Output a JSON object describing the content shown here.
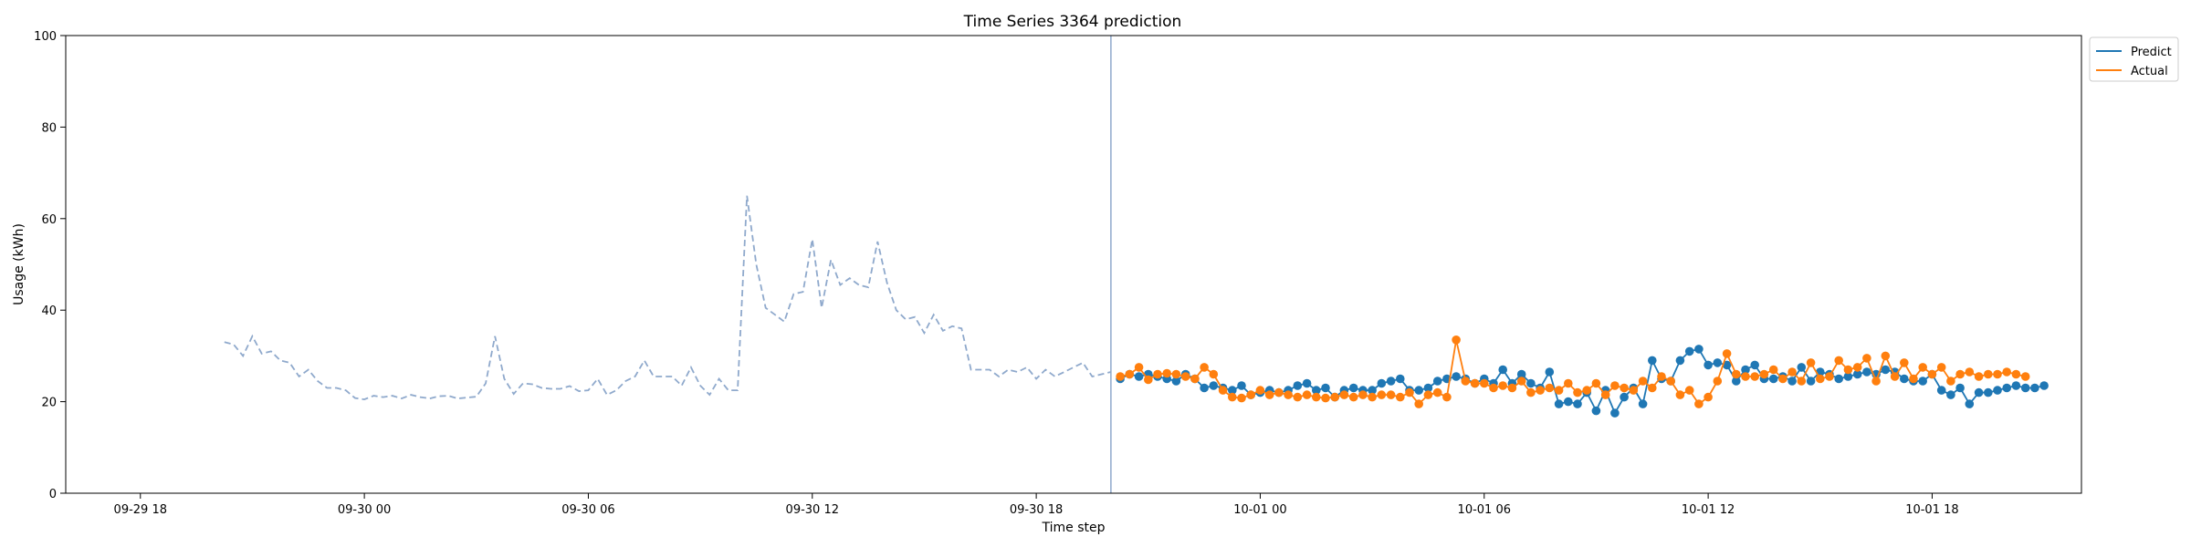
{
  "chart_data": {
    "type": "line",
    "title": "Time Series 3364 prediction",
    "xlabel": "Time step",
    "ylabel": "Usage (kWh)",
    "ylim": [
      0,
      100
    ],
    "yticks": [
      "0",
      "20",
      "40",
      "60",
      "80",
      "100"
    ],
    "xlim": [
      "2024-09-29T16:00",
      "2024-10-01T22:00"
    ],
    "xticks": [
      {
        "label": "09-29 18",
        "t": "2024-09-29T18:00"
      },
      {
        "label": "09-30 00",
        "t": "2024-09-30T00:00"
      },
      {
        "label": "09-30 06",
        "t": "2024-09-30T06:00"
      },
      {
        "label": "09-30 12",
        "t": "2024-09-30T12:00"
      },
      {
        "label": "09-30 18",
        "t": "2024-09-30T18:00"
      },
      {
        "label": "10-01 00",
        "t": "2024-10-01T00:00"
      },
      {
        "label": "10-01 06",
        "t": "2024-10-01T06:00"
      },
      {
        "label": "10-01 12",
        "t": "2024-10-01T12:00"
      },
      {
        "label": "10-01 18",
        "t": "2024-10-01T18:00"
      }
    ],
    "grid": false,
    "legend_position": "outside-top-right",
    "forecast_start": "2024-09-30T20:00",
    "sampling": "15 min",
    "history": {
      "start": "2024-09-29T20:15",
      "color": "#8fa9cc",
      "values": [
        33.0,
        32.5,
        30.0,
        34.3,
        30.5,
        31.0,
        29.0,
        28.5,
        25.5,
        27.0,
        24.5,
        23.0,
        23.0,
        22.5,
        20.8,
        20.5,
        21.3,
        21.0,
        21.3,
        20.7,
        21.5,
        21.0,
        20.7,
        21.2,
        21.3,
        20.7,
        20.9,
        21.1,
        24.0,
        34.3,
        25.0,
        21.7,
        24.0,
        23.8,
        23.0,
        22.8,
        22.8,
        23.4,
        22.3,
        22.5,
        25.0,
        21.5,
        22.5,
        24.5,
        25.5,
        29.0,
        25.5,
        25.5,
        25.5,
        23.5,
        27.5,
        23.5,
        21.5,
        25.0,
        22.5,
        22.5,
        65.0,
        50.0,
        40.5,
        39.0,
        37.5,
        43.5,
        44.0,
        55.5,
        40.5,
        51.0,
        45.5,
        47.0,
        45.5,
        45.0,
        55.0,
        46.0,
        40.0,
        38.0,
        38.5,
        35.0,
        39.0,
        35.5,
        36.5,
        36.0,
        27.0,
        27.0,
        27.0,
        25.5,
        27.0,
        26.5,
        27.5,
        25.0,
        27.0,
        25.5,
        26.5,
        27.5,
        28.5,
        25.5,
        26.0,
        26.5
      ]
    },
    "series": [
      {
        "name": "Predict",
        "color": "#1f77b4",
        "start": "2024-09-30T20:15",
        "values": [
          25.0,
          26.0,
          25.5,
          26.0,
          25.5,
          25.0,
          24.5,
          26.0,
          25.0,
          23.0,
          23.5,
          23.0,
          22.5,
          23.5,
          21.5,
          22.0,
          22.5,
          22.0,
          22.5,
          23.5,
          24.0,
          22.5,
          23.0,
          21.0,
          22.5,
          23.0,
          22.5,
          22.5,
          24.0,
          24.5,
          25.0,
          22.5,
          22.5,
          23.0,
          24.5,
          25.0,
          25.5,
          25.0,
          24.0,
          25.0,
          24.0,
          27.0,
          24.0,
          26.0,
          24.0,
          23.0,
          26.5,
          19.5,
          20.0,
          19.5,
          22.0,
          18.0,
          22.5,
          17.5,
          21.0,
          23.0,
          19.5,
          29.0,
          25.0,
          24.5,
          29.0,
          31.0,
          31.5,
          28.0,
          28.5,
          28.0,
          24.5,
          27.0,
          28.0,
          25.0,
          25.0,
          25.5,
          24.5,
          27.5,
          24.5,
          26.5,
          26.0,
          25.0,
          25.5,
          26.0,
          26.5,
          26.0,
          27.0,
          26.5,
          25.0,
          24.5,
          24.5,
          26.0,
          22.5,
          21.5,
          23.0,
          19.5,
          22.0,
          22.0,
          22.5,
          23.0,
          23.5,
          23.0,
          23.0,
          23.5
        ]
      },
      {
        "name": "Actual",
        "color": "#ff7f0e",
        "start": "2024-09-30T20:15",
        "values": [
          25.5,
          26.0,
          27.5,
          24.8,
          26.0,
          26.2,
          26.0,
          25.5,
          25.0,
          27.5,
          26.0,
          22.5,
          21.0,
          20.8,
          21.5,
          22.5,
          21.5,
          22.0,
          21.5,
          21.0,
          21.5,
          21.0,
          20.8,
          21.0,
          21.5,
          21.0,
          21.5,
          21.0,
          21.5,
          21.5,
          21.0,
          22.0,
          19.5,
          21.5,
          22.0,
          21.0,
          33.5,
          24.5,
          24.0,
          24.0,
          23.0,
          23.5,
          23.0,
          24.5,
          22.0,
          22.5,
          23.0,
          22.5,
          24.0,
          22.0,
          22.5,
          24.0,
          21.5,
          23.5,
          23.0,
          22.5,
          24.5,
          23.0,
          25.5,
          24.5,
          21.5,
          22.5,
          19.5,
          21.0,
          24.5,
          30.5,
          26.0,
          25.5,
          25.5,
          26.0,
          27.0,
          25.0,
          26.5,
          24.5,
          28.5,
          25.0,
          25.5,
          29.0,
          27.0,
          27.5,
          29.5,
          24.5,
          30.0,
          25.5,
          28.5,
          25.0,
          27.5,
          26.0,
          27.5,
          24.5,
          26.0,
          26.5,
          25.5,
          26.0,
          26.0,
          26.5,
          26.0,
          25.5
        ]
      }
    ]
  }
}
